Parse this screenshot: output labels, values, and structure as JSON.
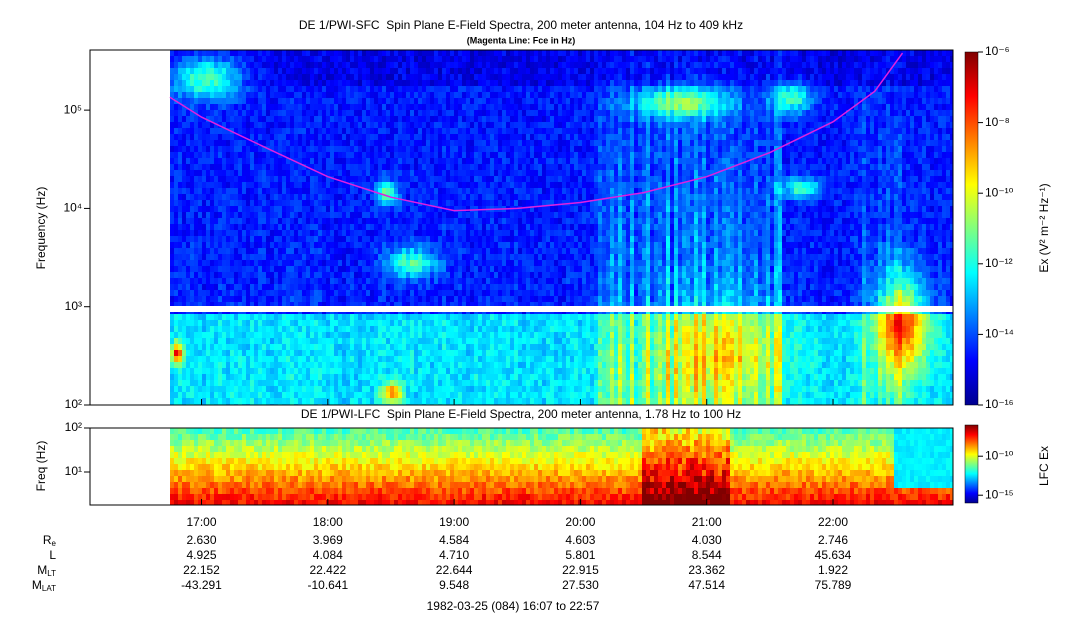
{
  "chart_data": [
    {
      "type": "spectrogram",
      "title": "DE 1/PWI-SFC  Spin Plane E-Field Spectra, 200 meter antenna, 104 Hz to 409 kHz",
      "subtitle": "(Magenta Line: Fce in Hz)",
      "ylabel": "Frequency (Hz)",
      "log_y": true,
      "ylim": [
        100,
        409000
      ],
      "yticks": [
        {
          "value": 100,
          "label": "10²"
        },
        {
          "value": 1000,
          "label": "10³"
        },
        {
          "value": 10000,
          "label": "10⁴"
        },
        {
          "value": 100000,
          "label": "10⁵"
        }
      ],
      "series": [
        {
          "color": "#e020e0",
          "x": [
            16.75,
            17.0,
            17.5,
            18.0,
            18.5,
            19.0,
            19.5,
            20.0,
            20.5,
            21.0,
            21.5,
            22.0,
            22.33,
            22.55
          ],
          "values": [
            135000,
            85000,
            42000,
            21000,
            13000,
            9500,
            10000,
            11500,
            14500,
            21000,
            37000,
            76000,
            155000,
            380000
          ]
        }
      ],
      "colorbar": {
        "label": "Ex (V² m⁻² Hz⁻¹)",
        "log": true,
        "lim": [
          1e-16,
          1e-06
        ],
        "ticks": [
          {
            "value": 1e-16,
            "label": "10⁻¹⁶"
          },
          {
            "value": 1e-14,
            "label": "10⁻¹⁴"
          },
          {
            "value": 1e-12,
            "label": "10⁻¹²"
          },
          {
            "value": 1e-10,
            "label": "10⁻¹⁰"
          },
          {
            "value": 1e-08,
            "label": "10⁻⁸"
          },
          {
            "value": 1e-06,
            "label": "10⁻⁶"
          }
        ]
      }
    },
    {
      "type": "spectrogram",
      "title": "DE 1/PWI-LFC  Spin Plane E-Field Spectra, 200 meter antenna, 1.78 Hz to 100 Hz",
      "ylabel": "Freq (Hz)",
      "log_y": true,
      "ylim": [
        1.78,
        100
      ],
      "yticks": [
        {
          "value": 10,
          "label": "10¹"
        },
        {
          "value": 100,
          "label": "10²"
        }
      ],
      "colorbar": {
        "label": "LFC Ex",
        "log": true,
        "lim": [
          1e-16,
          1e-06
        ],
        "ticks": [
          {
            "value": 1e-15,
            "label": "10⁻¹⁵"
          },
          {
            "value": 1e-10,
            "label": "10⁻¹⁰"
          }
        ]
      }
    }
  ],
  "x_axis": {
    "xlim": [
      16.117,
      22.95
    ],
    "xticks": [
      {
        "value": 17,
        "label": "17:00"
      },
      {
        "value": 18,
        "label": "18:00"
      },
      {
        "value": 19,
        "label": "19:00"
      },
      {
        "value": 20,
        "label": "20:00"
      },
      {
        "value": 21,
        "label": "21:00"
      },
      {
        "value": 22,
        "label": "22:00"
      }
    ]
  },
  "ephemeris": {
    "rows": [
      {
        "label": "R",
        "sub": "e",
        "values": [
          "2.630",
          "3.969",
          "4.584",
          "4.603",
          "4.030",
          "2.746"
        ]
      },
      {
        "label": "L",
        "values": [
          "4.925",
          "4.084",
          "4.710",
          "5.801",
          "8.544",
          "45.634"
        ]
      },
      {
        "label": "M",
        "sub": "LT",
        "values": [
          "22.152",
          "22.422",
          "22.644",
          "22.915",
          "23.362",
          "1.922"
        ]
      },
      {
        "label": "M",
        "sub": "LAT",
        "values": [
          "-43.291",
          "-10.641",
          "9.548",
          "27.530",
          "47.514",
          "75.789"
        ]
      }
    ]
  },
  "footer": "1982-03-25 (084) 16:07 to 22:57"
}
